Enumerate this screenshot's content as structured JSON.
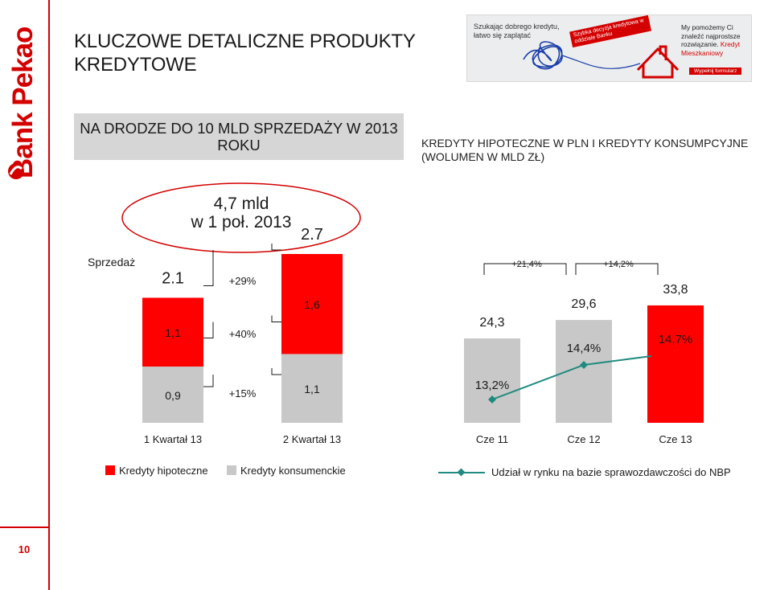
{
  "brand": "Bank Pekao",
  "page_number": "10",
  "title": "KLUCZOWE DETALICZNE PRODUKTY KREDYTOWE",
  "banner": {
    "left_text": "Szukając dobrego kredytu, łatwo się zaplątać",
    "tag_text": "Szybka decyzja kredytowa w oddziale Banku",
    "right_text_1": "My pomożemy Ci znaleźć najprostsze rozwiązanie.",
    "right_text_2": "Kredyt Mieszkaniowy",
    "button": "Wypełnij formularz"
  },
  "left_panel": {
    "headline": "NA DRODZE DO 10 MLD SPRZEDAŻY W 2013 ROKU",
    "oval_line1": "4,7 mld",
    "oval_line2": "w 1 poł. 2013"
  },
  "right_panel": {
    "subtitle": "KREDYTY HIPOTECZNE W PLN I KREDYTY KONSUMPCYJNE (WOLUMEN W MLD ZŁ)"
  },
  "colors": {
    "mortgage": "#ff0000",
    "consumer": "#c8c8c8",
    "share_line": "#1f8a7f",
    "brand_red": "#d40000"
  },
  "legend": {
    "mortgage": "Kredyty hipoteczne",
    "consumer": "Kredyty konsumenckie",
    "share": "Udział w rynku na bazie sprawozdawczości do NBP"
  },
  "chart_data": [
    {
      "type": "bar",
      "stacked": true,
      "axis_label": "Sprzedaż",
      "categories": [
        "1 Kwartał 13",
        "2 Kwartał 13"
      ],
      "series": [
        {
          "name": "Kredyty konsumenckie",
          "values": [
            0.9,
            1.1
          ],
          "labels": [
            "0,9",
            "1,1"
          ]
        },
        {
          "name": "Kredyty hipoteczne",
          "values": [
            1.1,
            1.6
          ],
          "labels": [
            "1,1",
            "1,6"
          ]
        }
      ],
      "totals": [
        "2.1",
        "2.7"
      ],
      "growth": {
        "mortgage": "+40%",
        "consumer": "+15%",
        "total": "+29%"
      },
      "ylim": [
        0,
        2.8
      ]
    },
    {
      "type": "bar",
      "categories": [
        "Cze 11",
        "Cze 12",
        "Cze 13"
      ],
      "series": [
        {
          "name": "Wolumen",
          "values": [
            24.3,
            29.6,
            33.8
          ],
          "labels": [
            "24,3",
            "29,6",
            "33,8"
          ]
        }
      ],
      "bar_colors": [
        "#c8c8c8",
        "#c8c8c8",
        "#ff0000"
      ],
      "growth": [
        "+21,4%",
        "+14,2%"
      ],
      "line": {
        "name": "Udział w rynku na bazie sprawozdawczości do NBP",
        "values": [
          13.2,
          14.4,
          14.7
        ],
        "labels": [
          "13,2%",
          "14,4%",
          "14,7%"
        ]
      },
      "ylim": [
        0,
        40
      ]
    }
  ]
}
